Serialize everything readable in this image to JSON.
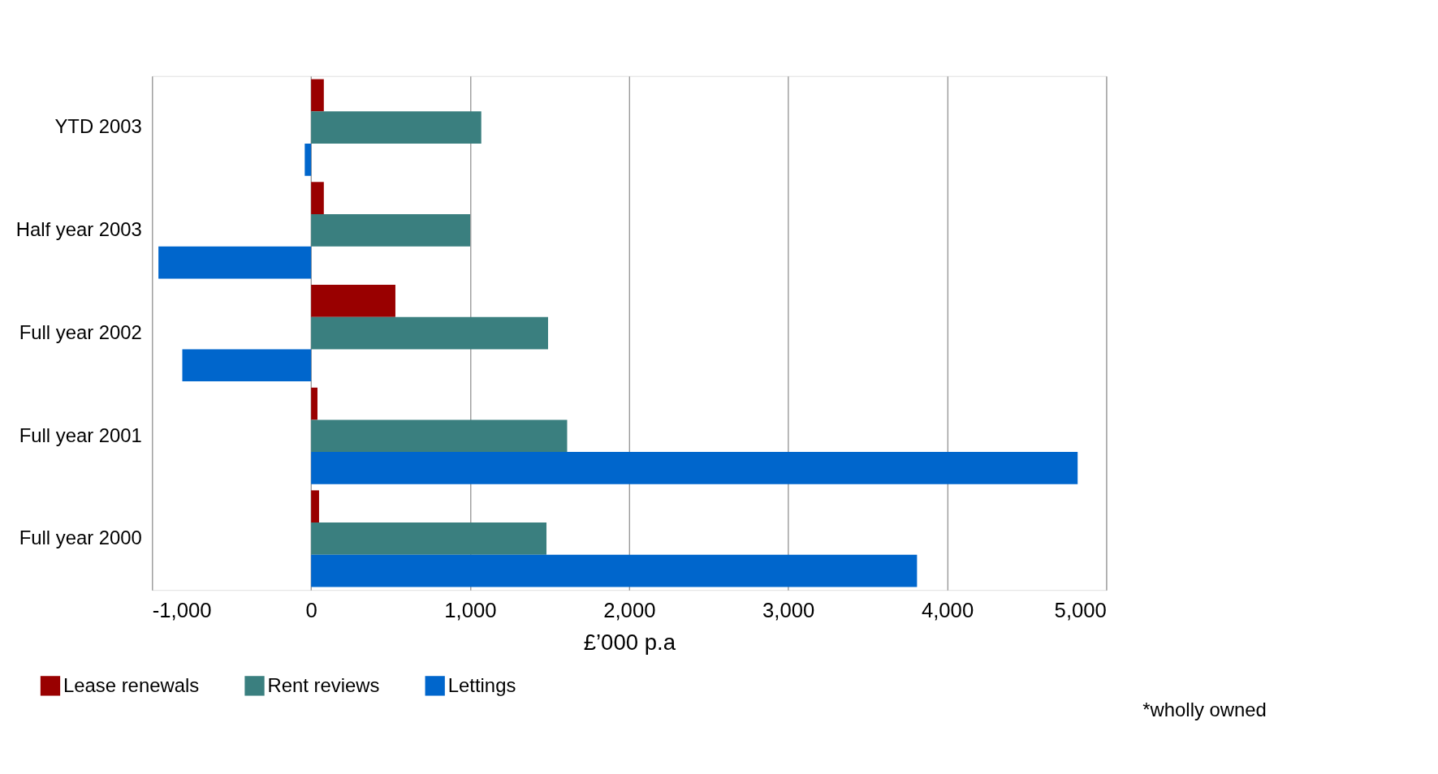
{
  "chart_data": {
    "type": "bar",
    "orientation": "horizontal",
    "xlabel": "£’000 p.a",
    "categories": [
      "YTD 2003",
      "Half year 2003",
      "Full year 2002",
      "Full year 2001",
      "Full year 2000"
    ],
    "series": [
      {
        "name": "Lease renewals",
        "color": "#990000",
        "values": [
          80,
          80,
          530,
          40,
          50
        ]
      },
      {
        "name": "Rent reviews",
        "color": "#3a7f7f",
        "values": [
          1070,
          1000,
          1490,
          1610,
          1480
        ]
      },
      {
        "name": "Lettings",
        "color": "#0066cc",
        "values": [
          -40,
          -960,
          -810,
          4820,
          3810
        ]
      }
    ],
    "xlim": [
      -1000,
      5000
    ],
    "xticks": [
      {
        "value": -1000,
        "label": "-1,000"
      },
      0,
      {
        "value": 1000,
        "label": "1,000"
      },
      {
        "value": 2000,
        "label": "2,000"
      },
      {
        "value": 3000,
        "label": "3,000"
      },
      {
        "value": 4000,
        "label": "4,000"
      },
      {
        "value": 5000,
        "label": "5,000"
      }
    ],
    "grid": "x",
    "legend": "bottom left",
    "annotations": [
      "*wholly owned"
    ]
  }
}
